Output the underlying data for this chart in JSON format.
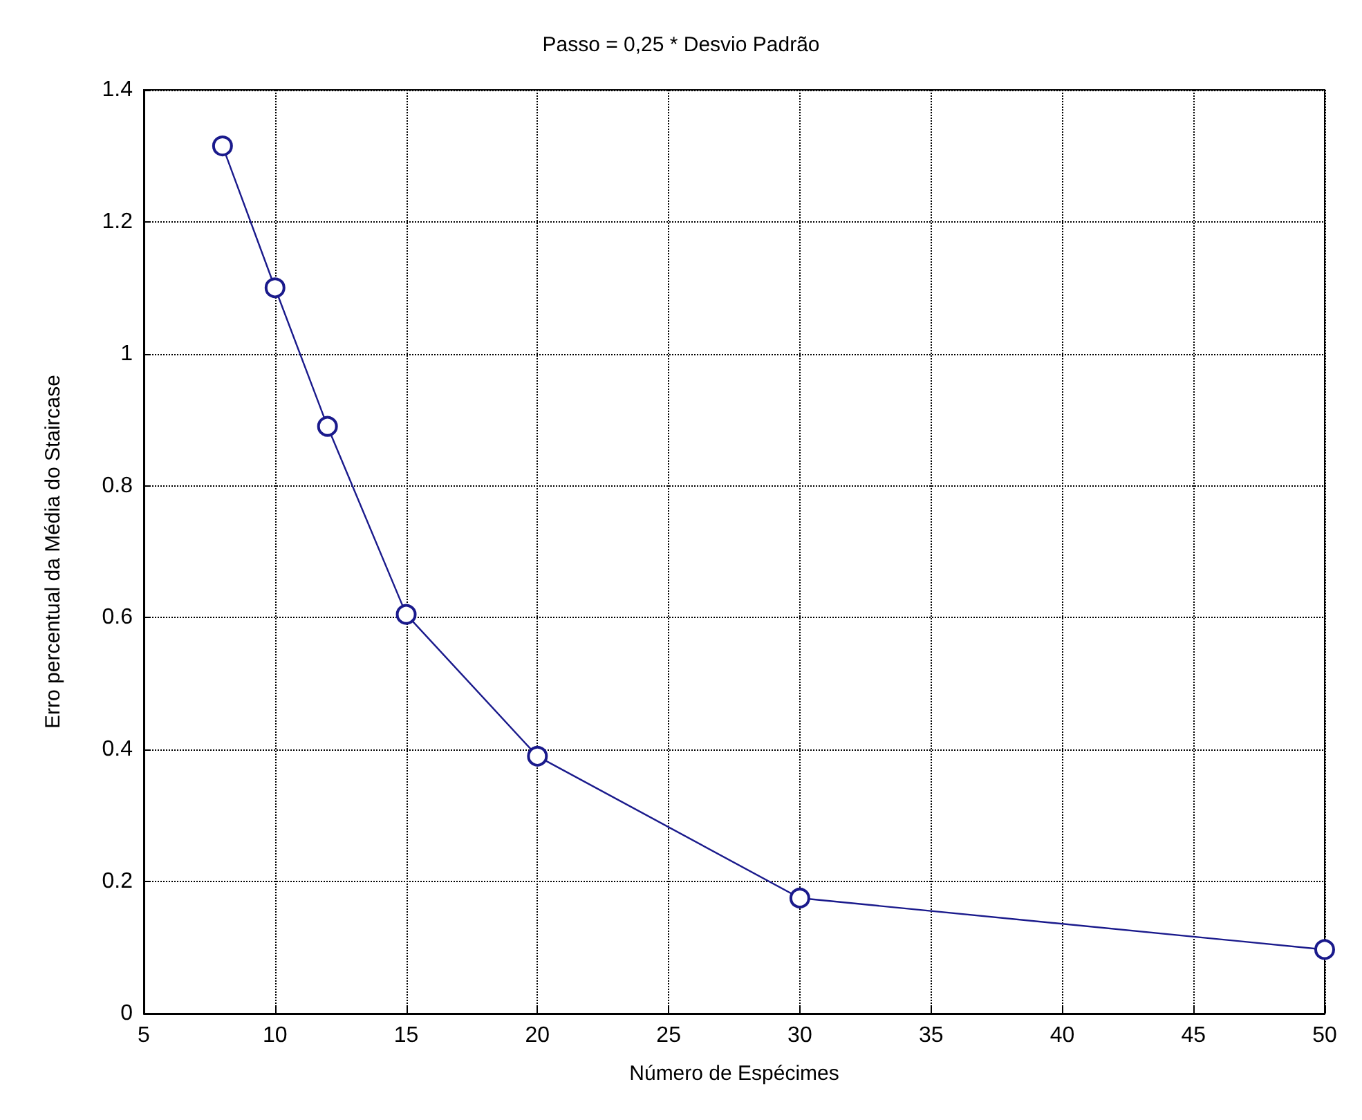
{
  "chart_data": {
    "type": "line",
    "title": "Passo = 0,25 * Desvio Padrão",
    "xlabel": "Número de Espécimes",
    "ylabel": "Erro percentual da Média do Staircase",
    "x": [
      8,
      10,
      12,
      15,
      20,
      30,
      50
    ],
    "series": [
      {
        "color": "#1a1a8c",
        "values": [
          1.315,
          1.1,
          0.89,
          0.605,
          0.39,
          0.175,
          0.097
        ]
      }
    ],
    "xlim": [
      5,
      50
    ],
    "xticks": [
      5,
      10,
      15,
      20,
      25,
      30,
      35,
      40,
      45,
      50
    ],
    "ylim": [
      0,
      1.4
    ],
    "yticks": [
      0,
      0.2,
      0.4,
      0.6,
      0.8,
      1,
      1.2,
      1.4
    ],
    "grid": true,
    "marker": "circle",
    "line_style": "solid"
  }
}
